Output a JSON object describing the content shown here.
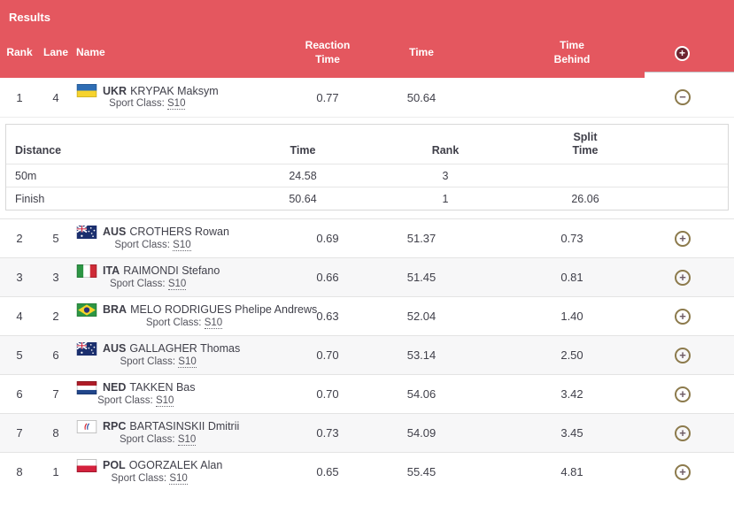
{
  "title": "Results",
  "columns": {
    "rank": "Rank",
    "lane": "Lane",
    "name": "Name",
    "reaction": "Reaction\nTime",
    "time": "Time",
    "behind": "Time\nBehind"
  },
  "icons": {
    "expand_all": "+",
    "expand": "+",
    "collapse": "−"
  },
  "colors": {
    "header_red": "#e4575f",
    "dark_text": "#3f3f49",
    "row_alt": "#f7f7f8",
    "expand_ring": "#8c7a4c",
    "expand_all_bg": "#6e2430"
  },
  "sport_class_label": "Sport Class:",
  "split_columns": {
    "distance": "Distance",
    "time": "Time",
    "rank": "Rank",
    "split": "Split\nTime"
  },
  "results": [
    {
      "rank": "1",
      "lane": "4",
      "country": "UKR",
      "name": "KRYPAK Maksym",
      "sport_class": "S10",
      "reaction_time": "0.77",
      "time": "50.64",
      "time_behind": "",
      "expanded": true,
      "splits": [
        {
          "distance": "50m",
          "time": "24.58",
          "rank": "3",
          "split": ""
        },
        {
          "distance": "Finish",
          "time": "50.64",
          "rank": "1",
          "split": "26.06"
        }
      ]
    },
    {
      "rank": "2",
      "lane": "5",
      "country": "AUS",
      "name": "CROTHERS Rowan",
      "sport_class": "S10",
      "reaction_time": "0.69",
      "time": "51.37",
      "time_behind": "0.73",
      "expanded": false
    },
    {
      "rank": "3",
      "lane": "3",
      "country": "ITA",
      "name": "RAIMONDI Stefano",
      "sport_class": "S10",
      "reaction_time": "0.66",
      "time": "51.45",
      "time_behind": "0.81",
      "expanded": false
    },
    {
      "rank": "4",
      "lane": "2",
      "country": "BRA",
      "name": "MELO RODRIGUES Phelipe Andrews",
      "sport_class": "S10",
      "reaction_time": "0.63",
      "time": "52.04",
      "time_behind": "1.40",
      "expanded": false
    },
    {
      "rank": "5",
      "lane": "6",
      "country": "AUS",
      "name": "GALLAGHER Thomas",
      "sport_class": "S10",
      "reaction_time": "0.70",
      "time": "53.14",
      "time_behind": "2.50",
      "expanded": false
    },
    {
      "rank": "6",
      "lane": "7",
      "country": "NED",
      "name": "TAKKEN Bas",
      "sport_class": "S10",
      "reaction_time": "0.70",
      "time": "54.06",
      "time_behind": "3.42",
      "expanded": false
    },
    {
      "rank": "7",
      "lane": "8",
      "country": "RPC",
      "name": "BARTASINSKII Dmitrii",
      "sport_class": "S10",
      "reaction_time": "0.73",
      "time": "54.09",
      "time_behind": "3.45",
      "expanded": false
    },
    {
      "rank": "8",
      "lane": "1",
      "country": "POL",
      "name": "OGORZALEK Alan",
      "sport_class": "S10",
      "reaction_time": "0.65",
      "time": "55.45",
      "time_behind": "4.81",
      "expanded": false
    }
  ]
}
